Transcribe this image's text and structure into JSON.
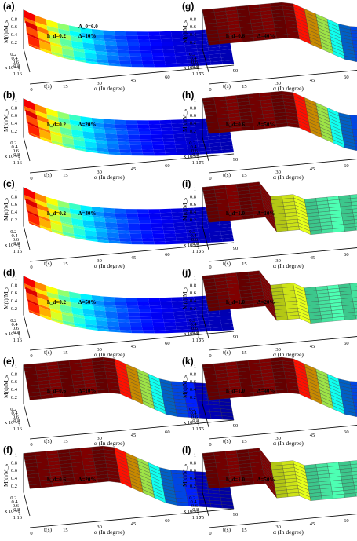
{
  "figure": {
    "panels": [
      {
        "id": "(a)",
        "hd": "h_d=0.2",
        "delta": "Δ=10%",
        "extra": "A_0=6.0",
        "mode": "smooth",
        "col": 0,
        "row": 0
      },
      {
        "id": "(b)",
        "hd": "h_d=0.2",
        "delta": "Δ=20%",
        "extra": "",
        "mode": "smooth",
        "col": 0,
        "row": 1
      },
      {
        "id": "(c)",
        "hd": "h_d=0.2",
        "delta": "Δ=40%",
        "extra": "",
        "mode": "smooth",
        "col": 0,
        "row": 2
      },
      {
        "id": "(d)",
        "hd": "h_d=0.2",
        "delta": "Δ=50%",
        "extra": "",
        "mode": "smooth",
        "col": 0,
        "row": 3
      },
      {
        "id": "(e)",
        "hd": "h_d=0.6",
        "delta": "Δ=10%",
        "extra": "",
        "mode": "step",
        "col": 0,
        "row": 4
      },
      {
        "id": "(f)",
        "hd": "h_d=0.6",
        "delta": "Δ=20%",
        "extra": "",
        "mode": "step",
        "col": 0,
        "row": 5
      },
      {
        "id": "(g)",
        "hd": "h_d=0.6",
        "delta": "Δ=40%",
        "extra": "",
        "mode": "step",
        "col": 1,
        "row": 0
      },
      {
        "id": "(h)",
        "hd": "h_d=0.6",
        "delta": "Δ=50%",
        "extra": "",
        "mode": "step",
        "col": 1,
        "row": 1
      },
      {
        "id": "(i)",
        "hd": "h_d=1.0",
        "delta": "Δ=10%",
        "extra": "",
        "mode": "block",
        "col": 1,
        "row": 2
      },
      {
        "id": "(j)",
        "hd": "h_d=1.0",
        "delta": "Δ=20%",
        "extra": "",
        "mode": "block",
        "col": 1,
        "row": 3
      },
      {
        "id": "(k)",
        "hd": "h_d=1.0",
        "delta": "Δ=40%",
        "extra": "",
        "mode": "step",
        "col": 1,
        "row": 4
      },
      {
        "id": "(l)",
        "hd": "h_d=1.0",
        "delta": "Δ=50%",
        "extra": "",
        "mode": "block",
        "col": 1,
        "row": 5
      }
    ],
    "axes": {
      "z_label": "M(t)/M_s",
      "z_ticks": [
        "0.2",
        "0.4",
        "0.6",
        "0.8",
        "1"
      ],
      "t_label": "t(s)",
      "t_ticks": [
        "0.2",
        "0.4",
        "0.6",
        "0.8",
        "1",
        "1.16"
      ],
      "t_scale": "x 10^-9",
      "alpha_label": "α (In degree)",
      "alpha_ticks": [
        "0",
        "15",
        "30",
        "45",
        "60",
        "75",
        "90"
      ]
    }
  },
  "chart_data": {
    "type": "surface",
    "x_label": "α (In degree)",
    "x_range": [
      0,
      90
    ],
    "y_label": "t(s)",
    "y_range": [
      0,
      1.16e-09
    ],
    "z_label": "M(t)/M_s",
    "z_range": [
      0,
      1
    ]
  },
  "colors": {
    "jet": [
      "#00008f",
      "#0000ff",
      "#0080ff",
      "#00ffff",
      "#80ff80",
      "#ffff00",
      "#ff8000",
      "#ff0000",
      "#800000"
    ]
  }
}
